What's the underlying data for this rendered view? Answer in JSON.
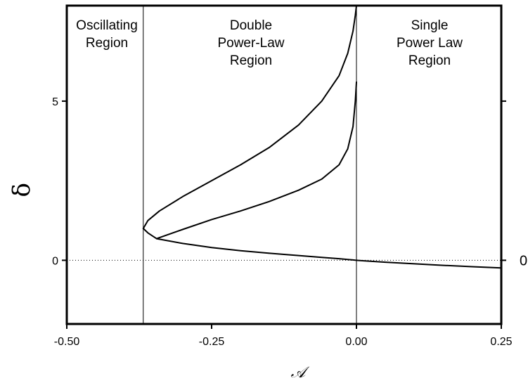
{
  "chart_data": {
    "type": "line",
    "title": "",
    "xlabel": "𝒜",
    "ylabel": "δ",
    "xlim": [
      -0.5,
      0.25
    ],
    "ylim": [
      -2.0,
      8.0
    ],
    "x_ticks": [
      -0.5,
      -0.25,
      0.0,
      0.25
    ],
    "x_tick_labels": [
      "-0.50",
      "-0.25",
      "0.00",
      "0.25"
    ],
    "y_ticks": [
      0,
      5
    ],
    "y_tick_labels": [
      "0",
      "5"
    ],
    "right_tick_labels": [
      "0"
    ],
    "grid": false,
    "legend": "none",
    "reference_lines": {
      "vertical_x": [
        -0.368,
        0.0
      ],
      "horizontal_dotted_y": 0
    },
    "region_labels": [
      {
        "lines": [
          "Oscillating",
          "Region"
        ]
      },
      {
        "lines": [
          "Double",
          "Power-Law",
          "Region"
        ]
      },
      {
        "lines": [
          "Single",
          "Power Law",
          "Region"
        ]
      }
    ],
    "series": [
      {
        "x": [
          -0.368,
          -0.36,
          -0.34,
          -0.3,
          -0.25,
          -0.2,
          -0.15,
          -0.1,
          -0.06,
          -0.03,
          -0.015,
          -0.006,
          -0.002,
          0.0
        ],
        "y": [
          1.0,
          1.25,
          1.55,
          2.0,
          2.5,
          3.0,
          3.55,
          4.25,
          5.0,
          5.8,
          6.5,
          7.2,
          7.7,
          8.0
        ]
      },
      {
        "x": [
          -0.368,
          -0.36,
          -0.345,
          -0.3,
          -0.25,
          -0.2,
          -0.15,
          -0.1,
          -0.06,
          -0.03,
          -0.015,
          -0.006,
          -0.002,
          0.0
        ],
        "y": [
          1.0,
          0.86,
          0.68,
          0.53,
          0.4,
          0.3,
          0.22,
          0.15,
          0.09,
          0.05,
          0.025,
          0.01,
          0.003,
          0.0
        ]
      },
      {
        "x": [
          -0.345,
          -0.3,
          -0.25,
          -0.2,
          -0.15,
          -0.1,
          -0.06,
          -0.03,
          -0.015,
          -0.006,
          -0.002,
          0.0
        ],
        "y": [
          0.68,
          0.97,
          1.28,
          1.55,
          1.85,
          2.2,
          2.55,
          3.0,
          3.5,
          4.2,
          5.0,
          5.6
        ]
      },
      {
        "x": [
          0.0,
          0.05,
          0.1,
          0.15,
          0.2,
          0.25
        ],
        "y": [
          0.0,
          -0.06,
          -0.11,
          -0.16,
          -0.2,
          -0.24
        ]
      }
    ]
  }
}
